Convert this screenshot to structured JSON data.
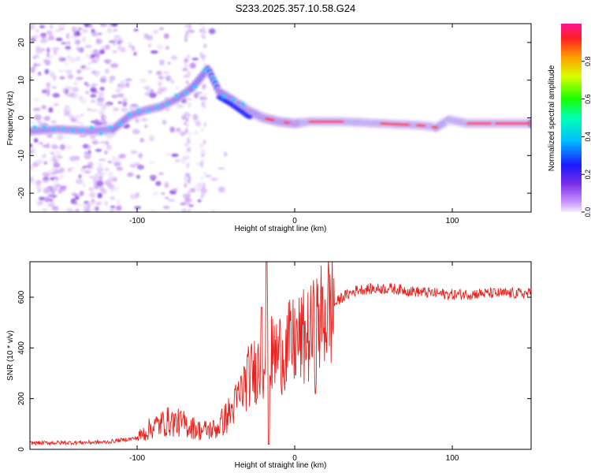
{
  "title": "S233.2025.357.10.58.G24",
  "chart_data": [
    {
      "type": "heatmap",
      "xlabel": "Height of straight line (km)",
      "ylabel": "Frequency (Hz)",
      "xlim": [
        -168,
        150
      ],
      "ylim": [
        -25,
        25
      ],
      "xticks": [
        -100,
        0,
        100
      ],
      "yticks": [
        -20,
        -10,
        0,
        10,
        20
      ],
      "colorbar": {
        "label": "Normalized spectral amplitude",
        "range": [
          0,
          1
        ],
        "ticks": [
          "0.0",
          "0.2",
          "0.4",
          "0.6",
          "0.8"
        ],
        "tick_values": [
          0,
          0.2,
          0.4,
          0.6,
          0.8
        ]
      },
      "ridge": [
        {
          "x": -168,
          "f": -3.5
        },
        {
          "x": -150,
          "f": -3
        },
        {
          "x": -130,
          "f": -3.5
        },
        {
          "x": -115,
          "f": -3
        },
        {
          "x": -105,
          "f": 0.5
        },
        {
          "x": -95,
          "f": 2
        },
        {
          "x": -85,
          "f": 3
        },
        {
          "x": -75,
          "f": 5
        },
        {
          "x": -65,
          "f": 8
        },
        {
          "x": -55,
          "f": 13
        },
        {
          "x": -48,
          "f": 7
        },
        {
          "x": -40,
          "f": 5
        },
        {
          "x": -30,
          "f": 2
        },
        {
          "x": -20,
          "f": 0
        },
        {
          "x": -10,
          "f": -1
        },
        {
          "x": 0,
          "f": -1.5
        },
        {
          "x": 10,
          "f": -1
        },
        {
          "x": 30,
          "f": -1
        },
        {
          "x": 55,
          "f": -1.5
        },
        {
          "x": 80,
          "f": -2
        },
        {
          "x": 90,
          "f": -2.5
        },
        {
          "x": 98,
          "f": -0.5
        },
        {
          "x": 110,
          "f": -1.5
        },
        {
          "x": 150,
          "f": -1.5
        }
      ]
    },
    {
      "type": "line",
      "xlabel": "Height of straight line (km)",
      "ylabel": "SNR (10 * v/v)",
      "xlim": [
        -168,
        150
      ],
      "ylim": [
        0,
        740
      ],
      "xticks": [
        -100,
        0,
        100
      ],
      "yticks": [
        0,
        200,
        400,
        600
      ],
      "color": "#e8231f",
      "envelope": [
        {
          "x": -168,
          "y": 25
        },
        {
          "x": -120,
          "y": 28
        },
        {
          "x": -100,
          "y": 45
        },
        {
          "x": -90,
          "y": 90
        },
        {
          "x": -80,
          "y": 110
        },
        {
          "x": -70,
          "y": 100
        },
        {
          "x": -60,
          "y": 75
        },
        {
          "x": -50,
          "y": 80
        },
        {
          "x": -40,
          "y": 150
        },
        {
          "x": -30,
          "y": 280
        },
        {
          "x": -20,
          "y": 350
        },
        {
          "x": -10,
          "y": 380
        },
        {
          "x": 0,
          "y": 420
        },
        {
          "x": 10,
          "y": 450
        },
        {
          "x": 20,
          "y": 540
        },
        {
          "x": 30,
          "y": 600
        },
        {
          "x": 40,
          "y": 630
        },
        {
          "x": 60,
          "y": 635
        },
        {
          "x": 80,
          "y": 620
        },
        {
          "x": 100,
          "y": 610
        },
        {
          "x": 120,
          "y": 615
        },
        {
          "x": 150,
          "y": 615
        }
      ],
      "spike": {
        "x": -18,
        "y": 740
      }
    }
  ]
}
